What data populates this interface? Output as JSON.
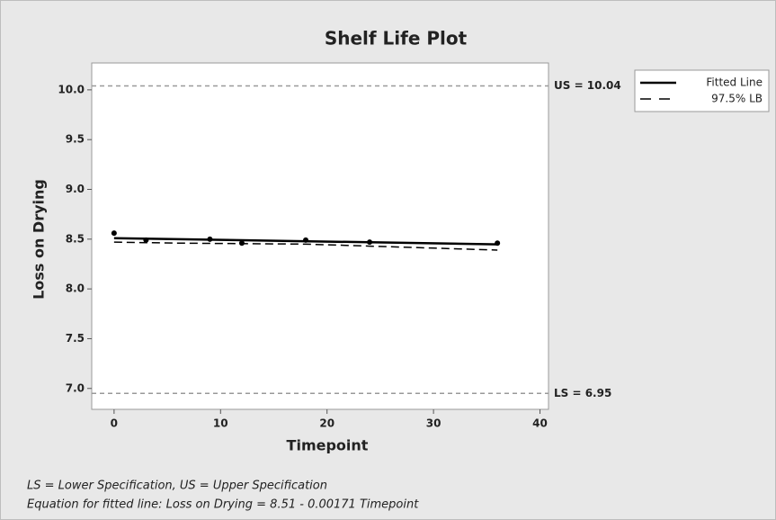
{
  "chart_data": {
    "type": "line",
    "title": "Shelf Life Plot",
    "x_label": "Timepoint",
    "y_label": "Loss on Drying",
    "xlim": [
      -2.1,
      40.8
    ],
    "ylim": [
      6.79,
      10.27
    ],
    "xticks": [
      0,
      10,
      20,
      30,
      40
    ],
    "yticks": [
      {
        "value": 10,
        "label": "10.0"
      },
      9.5,
      {
        "value": 9,
        "label": "9.0"
      },
      8.5,
      {
        "value": 8,
        "label": "8.0"
      },
      7.5,
      {
        "value": 7,
        "label": "7.0"
      }
    ],
    "points": {
      "color": "#000000",
      "x": [
        0,
        3,
        9,
        12,
        18,
        24,
        36
      ],
      "values": [
        8.56,
        8.49,
        8.5,
        8.46,
        8.49,
        8.47,
        8.46
      ]
    },
    "series": [
      {
        "name": "Fitted Line",
        "color": "#000000",
        "dash": false,
        "x": [
          0,
          36
        ],
        "values": [
          8.51,
          8.448
        ]
      },
      {
        "name": "97.5% LB",
        "color": "#000000",
        "dash": true,
        "x": [
          0,
          6,
          12,
          18,
          24,
          30,
          36
        ],
        "values": [
          8.47,
          8.46,
          8.455,
          8.45,
          8.43,
          8.41,
          8.39
        ]
      }
    ],
    "reference_lines": [
      {
        "value": 10.04,
        "label": "US = 10.04",
        "color": "#999999"
      },
      {
        "value": 6.95,
        "label": "LS = 6.95",
        "color": "#999999"
      }
    ],
    "legend": "top-right",
    "footnotes": [
      "LS = Lower Specification, US = Upper Specification",
      "Equation for fitted line: Loss on Drying = 8.51 - 0.00171 Timepoint"
    ]
  }
}
